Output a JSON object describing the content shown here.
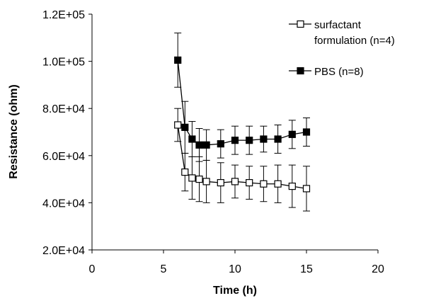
{
  "chart_data": {
    "type": "line",
    "title": "",
    "xlabel": "Time (h)",
    "ylabel": "Resistance (ohm)",
    "xlim": [
      0,
      20
    ],
    "ylim": [
      20000,
      120000
    ],
    "x_ticks": [
      "0",
      "5",
      "10",
      "15",
      "20"
    ],
    "y_ticks": [
      "2.0E+04",
      "4.0E+04",
      "6.0E+04",
      "8.0E+04",
      "1.0E+05",
      "1.2E+05"
    ],
    "grid": false,
    "legend_position": "top-right",
    "series": [
      {
        "name": "surfactant formulation (n=4)",
        "legend_lines": [
          "surfactant",
          "formulation (n=4)"
        ],
        "marker": "open-square",
        "color": "#000000",
        "points": [
          {
            "x": 6.0,
            "y": 73000,
            "err": 7000
          },
          {
            "x": 6.5,
            "y": 53000,
            "err": 8000
          },
          {
            "x": 7.0,
            "y": 50500,
            "err": 9000
          },
          {
            "x": 7.5,
            "y": 50000,
            "err": 9500
          },
          {
            "x": 8.0,
            "y": 49000,
            "err": 9000
          },
          {
            "x": 9.0,
            "y": 48500,
            "err": 8500
          },
          {
            "x": 10.0,
            "y": 49000,
            "err": 7000
          },
          {
            "x": 11.0,
            "y": 48500,
            "err": 7000
          },
          {
            "x": 12.0,
            "y": 48000,
            "err": 7500
          },
          {
            "x": 13.0,
            "y": 48000,
            "err": 8000
          },
          {
            "x": 14.0,
            "y": 47000,
            "err": 9000
          },
          {
            "x": 15.0,
            "y": 46000,
            "err": 9500
          }
        ]
      },
      {
        "name": "PBS (n=8)",
        "legend_lines": [
          "PBS (n=8)"
        ],
        "marker": "filled-square",
        "color": "#000000",
        "points": [
          {
            "x": 6.0,
            "y": 100500,
            "err": 11500
          },
          {
            "x": 6.5,
            "y": 72000,
            "err": 11000
          },
          {
            "x": 7.0,
            "y": 67000,
            "err": 7500
          },
          {
            "x": 7.5,
            "y": 64500,
            "err": 7000
          },
          {
            "x": 8.0,
            "y": 64500,
            "err": 6500
          },
          {
            "x": 9.0,
            "y": 65000,
            "err": 6000
          },
          {
            "x": 10.0,
            "y": 66500,
            "err": 6000
          },
          {
            "x": 11.0,
            "y": 66500,
            "err": 6000
          },
          {
            "x": 12.0,
            "y": 67000,
            "err": 5500
          },
          {
            "x": 13.0,
            "y": 67000,
            "err": 6000
          },
          {
            "x": 14.0,
            "y": 69000,
            "err": 6000
          },
          {
            "x": 15.0,
            "y": 70000,
            "err": 6000
          }
        ]
      }
    ]
  }
}
